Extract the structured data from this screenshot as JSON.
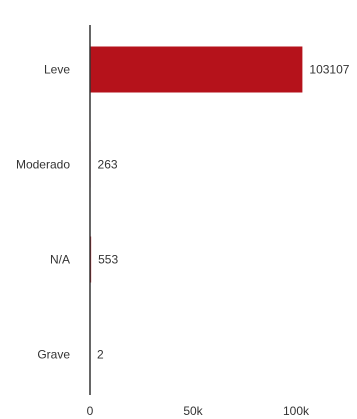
{
  "chart_data": {
    "type": "bar",
    "orientation": "horizontal",
    "categories": [
      "Leve",
      "Moderado",
      "N/A",
      "Grave"
    ],
    "values": [
      103107,
      263,
      553,
      2
    ],
    "value_labels": [
      "103107",
      "263",
      "553",
      "2"
    ],
    "xlim": [
      0,
      100000
    ],
    "x_ticks": [
      0,
      50000,
      100000
    ],
    "x_tick_labels": [
      "0",
      "50k",
      "100k"
    ],
    "title": "",
    "xlabel": "",
    "ylabel": "",
    "grid": false,
    "bar_color": "#b5121b",
    "axis_color": "#333333"
  }
}
